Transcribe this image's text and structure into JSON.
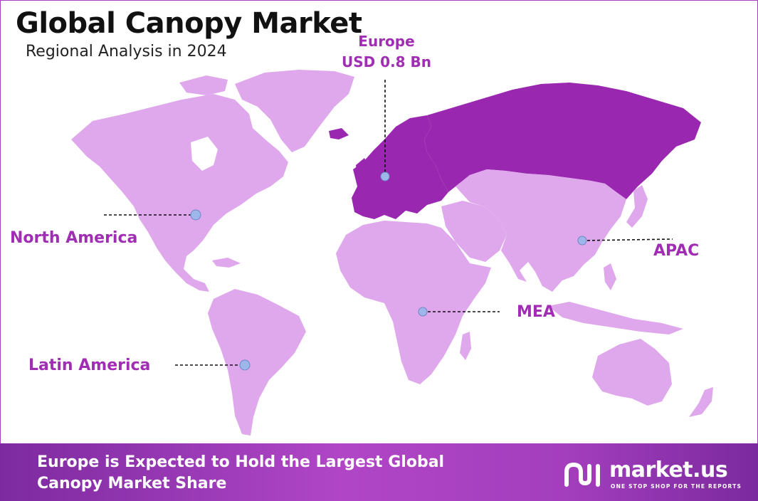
{
  "title": "Global Canopy Market",
  "subtitle": "Regional Analysis in 2024",
  "highlight": {
    "region": "Europe",
    "value": "USD 0.8 Bn"
  },
  "regions": [
    {
      "name": "North America",
      "highlighted": false
    },
    {
      "name": "Latin America",
      "highlighted": false
    },
    {
      "name": "Europe",
      "highlighted": true
    },
    {
      "name": "MEA",
      "highlighted": false
    },
    {
      "name": "APAC",
      "highlighted": false
    }
  ],
  "labels": {
    "north_america": "North America",
    "latin_america": "Latin America",
    "mea": "MEA",
    "apac": "APAC"
  },
  "footer": {
    "line1": "Europe is Expected to Hold the Largest Global",
    "line2": "Canopy Market Share"
  },
  "brand": {
    "name": "market.us",
    "tagline": "ONE STOP SHOP FOR THE REPORTS"
  },
  "colors": {
    "land": "#dfa8ec",
    "europe_highlight": "#9a27b0",
    "label": "#a12db5",
    "marker": "#9eb7ea",
    "footer": "#a33ebd"
  }
}
